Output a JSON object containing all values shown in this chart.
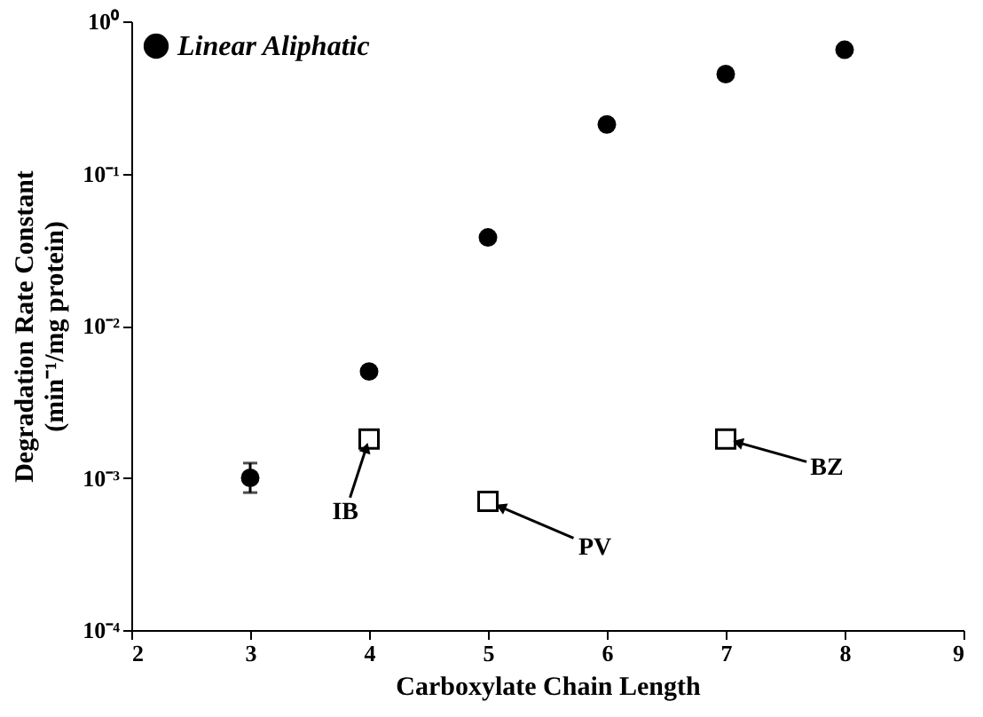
{
  "chart_data": {
    "type": "scatter",
    "xlabel": "Carboxylate Chain Length",
    "ylabel": "Degradation Rate Constant\n(min⁻¹/mg protein)",
    "log": "y",
    "grid": false,
    "legend": "top left",
    "xlim": [
      2,
      9
    ],
    "xticks": [
      2,
      3,
      4,
      5,
      6,
      7,
      8,
      9
    ],
    "ylim": [
      0.0001,
      1
    ],
    "yticks": [
      {
        "value": 0.0001,
        "label": "10⁻⁴"
      },
      {
        "value": 0.001,
        "label": "10⁻³"
      },
      {
        "value": 0.01,
        "label": "10⁻²"
      },
      {
        "value": 0.1,
        "label": "10⁻¹"
      },
      {
        "value": 1,
        "label": "10⁰"
      }
    ],
    "series": [
      {
        "name": "Linear Aliphatic",
        "color": "#000000",
        "marker": "circle",
        "x": [
          3,
          4,
          5,
          6,
          7,
          8
        ],
        "values": [
          0.001,
          0.005,
          0.038,
          0.21,
          0.45,
          0.65
        ],
        "errors": [
          [
            0.0008,
            0.00125
          ],
          null,
          null,
          null,
          null,
          null
        ]
      },
      {
        "color": "#000000",
        "marker": "square",
        "x": [
          4,
          5,
          7
        ],
        "values": [
          0.0018,
          0.0007,
          0.0018
        ]
      }
    ],
    "annotations": [
      {
        "text": "IB",
        "x": 4,
        "y": 0.0018
      },
      {
        "text": "PV",
        "x": 5,
        "y": 0.0007
      },
      {
        "text": "BZ",
        "x": 7,
        "y": 0.0018
      }
    ]
  }
}
